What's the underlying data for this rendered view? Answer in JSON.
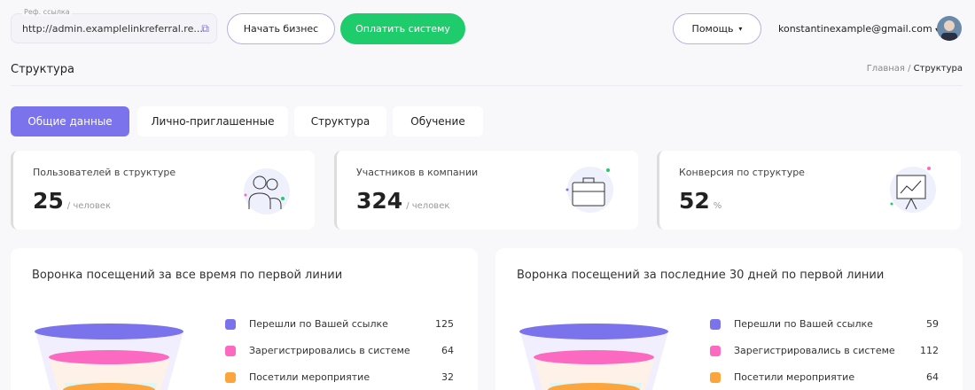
{
  "header": {
    "ref_label": "Реф. ссылка",
    "ref_value": "http://admin.examplelinkreferral.re...",
    "start_business": "Начать бизнес",
    "pay_system": "Оплатить систему",
    "help": "Помощь",
    "email": "konstantinexample@gmail.com"
  },
  "page": {
    "title": "Структура",
    "breadcrumb_home": "Главная",
    "breadcrumb_sep": "/",
    "breadcrumb_current": "Структура"
  },
  "tabs": [
    {
      "label": "Общие данные",
      "active": true
    },
    {
      "label": "Лично-приглашенные"
    },
    {
      "label": "Структура"
    },
    {
      "label": "Обучение"
    }
  ],
  "stats": [
    {
      "title": "Пользователей в структуре",
      "value": "25",
      "unit": "/ человек",
      "icon": "users-icon"
    },
    {
      "title": "Участников в компании",
      "value": "324",
      "unit": "/ человек",
      "icon": "briefcase-icon"
    },
    {
      "title": "Конверсия по структуре",
      "value": "52",
      "unit": "%",
      "icon": "presentation-chart-icon"
    }
  ],
  "colors": {
    "accent": "#7b73ec",
    "green": "#1fcc6c",
    "purple": "#7b73ec",
    "pink": "#fb6ac0",
    "orange": "#fba53c"
  },
  "funnels": [
    {
      "title": "Воронка посещений за все время по первой линии",
      "items": [
        {
          "label": "Перешли по Вашей ссылке",
          "value": "125"
        },
        {
          "label": "Зарегистрировались в системе",
          "value": "64"
        },
        {
          "label": "Посетили мероприятие",
          "value": "32"
        }
      ]
    },
    {
      "title": "Воронка посещений за последние 30 дней по первой линии",
      "items": [
        {
          "label": "Перешли по Вашей ссылке",
          "value": "59"
        },
        {
          "label": "Зарегистрировались в системе",
          "value": "112"
        },
        {
          "label": "Посетили мероприятие",
          "value": "64"
        }
      ]
    }
  ]
}
